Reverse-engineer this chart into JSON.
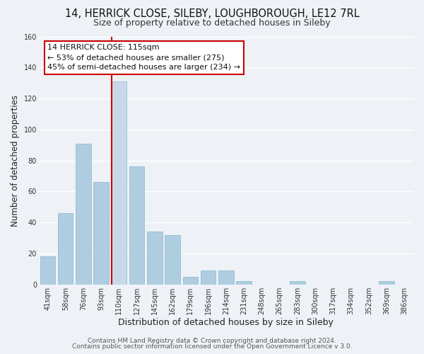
{
  "title": "14, HERRICK CLOSE, SILEBY, LOUGHBOROUGH, LE12 7RL",
  "subtitle": "Size of property relative to detached houses in Sileby",
  "xlabel": "Distribution of detached houses by size in Sileby",
  "ylabel": "Number of detached properties",
  "bar_labels": [
    "41sqm",
    "58sqm",
    "76sqm",
    "93sqm",
    "110sqm",
    "127sqm",
    "145sqm",
    "162sqm",
    "179sqm",
    "196sqm",
    "214sqm",
    "231sqm",
    "248sqm",
    "265sqm",
    "283sqm",
    "300sqm",
    "317sqm",
    "334sqm",
    "352sqm",
    "369sqm",
    "386sqm"
  ],
  "bar_values": [
    18,
    46,
    91,
    66,
    131,
    76,
    34,
    32,
    5,
    9,
    9,
    2,
    0,
    0,
    2,
    0,
    0,
    0,
    0,
    2,
    0
  ],
  "highlight_bar_index": 4,
  "bar_color": "#aecde0",
  "highlight_bar_color": "#c8d8e8",
  "red_line_bar_index": 4,
  "annotation_title": "14 HERRICK CLOSE: 115sqm",
  "annotation_line1": "← 53% of detached houses are smaller (275)",
  "annotation_line2": "45% of semi-detached houses are larger (234) →",
  "annotation_box_color": "#ffffff",
  "annotation_box_edge": "#cc0000",
  "ylim": [
    0,
    160
  ],
  "yticks": [
    0,
    20,
    40,
    60,
    80,
    100,
    120,
    140,
    160
  ],
  "footer1": "Contains HM Land Registry data © Crown copyright and database right 2024.",
  "footer2": "Contains public sector information licensed under the Open Government Licence v 3.0.",
  "background_color": "#eef2f7",
  "grid_color": "#ffffff",
  "title_fontsize": 10.5,
  "subtitle_fontsize": 9,
  "xlabel_fontsize": 9,
  "ylabel_fontsize": 8.5,
  "tick_fontsize": 7,
  "annotation_fontsize": 8,
  "footer_fontsize": 6.5
}
